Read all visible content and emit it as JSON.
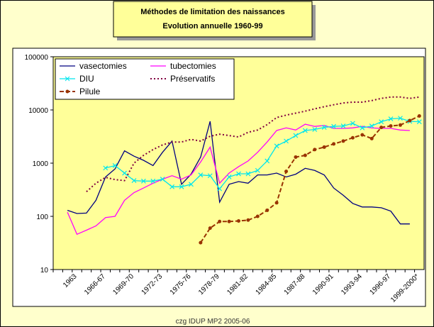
{
  "chart_data": {
    "type": "line",
    "title": "Méthodes de limitation des naissances",
    "subtitle": "Evolution annuelle 1960-99",
    "footer": "czg IDUP MP2 2005-06",
    "categories": [
      null,
      null,
      "1963",
      null,
      null,
      "1966-67",
      null,
      null,
      "1969-70",
      null,
      null,
      "1972-73",
      null,
      null,
      "1975-76",
      null,
      null,
      "1978-79",
      null,
      null,
      "1981-82",
      null,
      null,
      "1984-85",
      null,
      null,
      "1987-88",
      null,
      null,
      "1990-91",
      null,
      null,
      "1993-94",
      null,
      null,
      "1996-97",
      null,
      null,
      "1999-2000*"
    ],
    "log_scale": true,
    "grid": false,
    "legend": "upper left",
    "ylim": [
      10,
      100000
    ],
    "yticks": [
      10,
      100,
      1000,
      10000,
      100000
    ],
    "series": [
      {
        "name": "vasectomies",
        "color": "#000080",
        "line_style": "solid",
        "marker": "none",
        "values": [
          null,
          130,
          113,
          115,
          200,
          550,
          780,
          1700,
          1350,
          1130,
          900,
          1600,
          2600,
          400,
          620,
          1300,
          6100,
          185,
          400,
          450,
          420,
          600,
          600,
          650,
          550,
          620,
          800,
          730,
          600,
          340,
          250,
          175,
          150,
          150,
          145,
          125,
          72,
          72,
          null
        ]
      },
      {
        "name": "tubectomies",
        "color": "#ff00ff",
        "line_style": "solid",
        "marker": "none",
        "values": [
          null,
          120,
          46,
          55,
          66,
          95,
          100,
          200,
          280,
          340,
          420,
          500,
          580,
          500,
          600,
          1050,
          2000,
          420,
          650,
          860,
          1100,
          1600,
          2500,
          4100,
          4600,
          4200,
          5400,
          4900,
          5100,
          4500,
          4500,
          4600,
          4900,
          4600,
          4500,
          4500,
          4200,
          4100,
          null
        ]
      },
      {
        "name": "DIU",
        "color": "#00e5ee",
        "line_style": "solid",
        "marker": "x",
        "values": [
          null,
          null,
          null,
          null,
          null,
          810,
          900,
          650,
          470,
          460,
          460,
          500,
          360,
          360,
          400,
          600,
          580,
          330,
          550,
          630,
          630,
          730,
          1100,
          2100,
          2600,
          3300,
          4100,
          4300,
          4700,
          4900,
          5000,
          5600,
          4600,
          5000,
          6000,
          6800,
          7000,
          6100,
          6000
        ]
      },
      {
        "name": "Préservatifs",
        "color": "#800040",
        "line_style": "dotted",
        "marker": "none",
        "values": [
          null,
          null,
          null,
          290,
          420,
          540,
          490,
          470,
          1000,
          1400,
          1800,
          2200,
          2500,
          2500,
          2800,
          2600,
          3200,
          3500,
          3300,
          3100,
          3800,
          4200,
          5300,
          7200,
          8000,
          8700,
          9500,
          10500,
          11500,
          12500,
          13500,
          14000,
          14000,
          15000,
          16500,
          17500,
          17500,
          16500,
          17500
        ]
      },
      {
        "name": "Pilule",
        "color": "#993300",
        "line_style": "dashed",
        "marker": "circle",
        "values": [
          null,
          null,
          null,
          null,
          null,
          null,
          null,
          null,
          null,
          null,
          null,
          null,
          null,
          null,
          null,
          32,
          60,
          80,
          80,
          82,
          85,
          100,
          130,
          180,
          700,
          1300,
          1400,
          1800,
          2000,
          2300,
          2600,
          3000,
          3400,
          2900,
          4700,
          5000,
          5200,
          6300,
          7700
        ]
      }
    ]
  }
}
